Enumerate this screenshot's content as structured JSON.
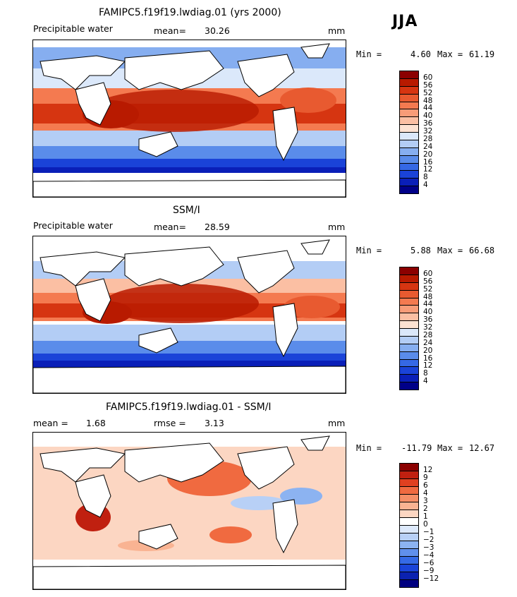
{
  "season": "JJA",
  "panels": [
    {
      "title": "FAMIPC5.f19f19.lwdiag.01 (yrs 2000)",
      "left_label": "Precipitable water",
      "stat": "mean=",
      "stat_value": "30.26",
      "units": "mm",
      "min_label": "Min =",
      "min_value": "4.60",
      "max_label": "Max =",
      "max_value": "61.19",
      "legend_ticks": [
        "60",
        "56",
        "52",
        "48",
        "44",
        "40",
        "36",
        "32",
        "28",
        "24",
        "20",
        "16",
        "12",
        "8",
        "4"
      ]
    },
    {
      "title": "SSM/I",
      "left_label": "Precipitable water",
      "stat": "mean=",
      "stat_value": "28.59",
      "units": "mm",
      "min_label": "Min =",
      "min_value": "5.88",
      "max_label": "Max =",
      "max_value": "66.68",
      "legend_ticks": [
        "60",
        "56",
        "52",
        "48",
        "44",
        "40",
        "36",
        "32",
        "28",
        "24",
        "20",
        "16",
        "12",
        "8",
        "4"
      ]
    },
    {
      "title": "FAMIPC5.f19f19.lwdiag.01 - SSM/I",
      "left_label": "mean =",
      "left_value": "1.68",
      "stat": "rmse =",
      "stat_value": "3.13",
      "units": "mm",
      "min_label": "Min =",
      "min_value": "-11.79",
      "max_label": "Max =",
      "max_value": "12.67",
      "legend_ticks": [
        "12",
        "9",
        "6",
        "4",
        "3",
        "2",
        "1",
        "0",
        "−1",
        "−2",
        "−3",
        "−4",
        "−6",
        "−9",
        "−12"
      ]
    }
  ],
  "palette": {
    "abs": [
      "#8b0000",
      "#b81a00",
      "#d63511",
      "#e85a30",
      "#f47a50",
      "#f89c78",
      "#fbbfa3",
      "#fde2d2",
      "#dbe8fa",
      "#b3cdf5",
      "#86aef0",
      "#5a8cea",
      "#3568e5",
      "#1a43d8",
      "#0a1fb8",
      "#000088"
    ],
    "diff": [
      "#8b0000",
      "#c02010",
      "#e04020",
      "#f06a40",
      "#f58e66",
      "#f9b392",
      "#fcd6c2",
      "#ffffff",
      "#dde9fb",
      "#b8d0f6",
      "#8cb3f1",
      "#6090ec",
      "#356ae6",
      "#1a44d9",
      "#0b22b0",
      "#000080"
    ]
  }
}
